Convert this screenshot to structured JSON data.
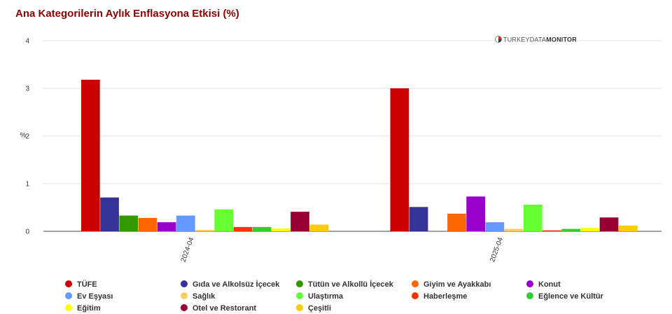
{
  "chart_data": {
    "type": "bar",
    "title": "Ana Kategorilerin Aylık Enflasyona Etkisi (%)",
    "ylabel": "%",
    "ylim": [
      0,
      4
    ],
    "yticks": [
      "0",
      "1",
      "2",
      "3",
      "4"
    ],
    "categories": [
      "2024-04",
      "2025-04"
    ],
    "grid": true,
    "legend_position": "bottom",
    "watermark": {
      "prefix": "TURKEYDATA",
      "suffix": "MONITOR"
    },
    "series": [
      {
        "name": "TÜFE",
        "color": "#cc0000",
        "values": [
          3.18,
          3.0
        ]
      },
      {
        "name": "Gıda ve Alkolsüz İçecek",
        "color": "#333399",
        "values": [
          0.71,
          0.51
        ]
      },
      {
        "name": "Tütün ve Alkollü İçecek",
        "color": "#339900",
        "values": [
          0.33,
          null
        ]
      },
      {
        "name": "Giyim ve Ayakkabı",
        "color": "#ff6600",
        "values": [
          0.28,
          0.37
        ]
      },
      {
        "name": "Konut",
        "color": "#9900cc",
        "values": [
          0.19,
          0.73
        ]
      },
      {
        "name": "Ev Eşyası",
        "color": "#6699ff",
        "values": [
          0.33,
          0.19
        ]
      },
      {
        "name": "Sağlık",
        "color": "#ffcc66",
        "values": [
          0.03,
          0.05
        ]
      },
      {
        "name": "Ulaştırma",
        "color": "#66ff33",
        "values": [
          0.46,
          0.56
        ]
      },
      {
        "name": "Haberleşme",
        "color": "#ff3300",
        "values": [
          0.09,
          0.02
        ]
      },
      {
        "name": "Eğlence ve Kültür",
        "color": "#33cc33",
        "values": [
          0.09,
          0.05
        ]
      },
      {
        "name": "Eğitim",
        "color": "#ffff00",
        "values": [
          0.06,
          0.07
        ]
      },
      {
        "name": "Otel ve Restorant",
        "color": "#990033",
        "values": [
          0.41,
          0.29
        ]
      },
      {
        "name": "Çeşitli",
        "color": "#ffcc00",
        "values": [
          0.14,
          0.12
        ]
      }
    ]
  }
}
